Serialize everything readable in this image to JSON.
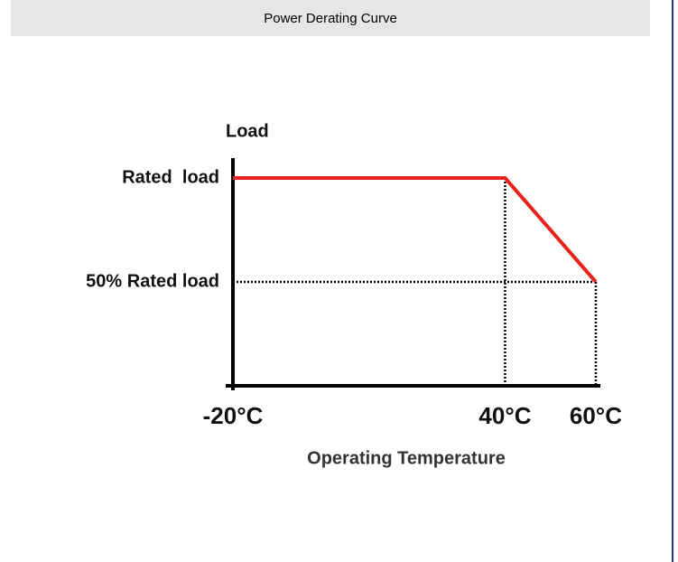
{
  "header": {
    "title": "Power Derating Curve"
  },
  "chart_data": {
    "type": "line",
    "y_label": "Load",
    "x_label": "Operating Temperature",
    "x": [
      -20,
      40,
      60
    ],
    "series": [
      {
        "color": "#e8231c",
        "values": [
          100,
          100,
          50
        ]
      }
    ],
    "xlim": [
      -20,
      62
    ],
    "ylim": [
      0,
      110
    ],
    "xticks": [
      {
        "value": -20,
        "label": "-20°C"
      },
      {
        "value": 40,
        "label": "40°C"
      },
      {
        "value": 60,
        "label": "60°C"
      }
    ],
    "yticks": [
      {
        "value": 100,
        "label": "Rated  load"
      },
      {
        "value": 50,
        "label": "50% Rated load"
      }
    ],
    "grid": false
  }
}
